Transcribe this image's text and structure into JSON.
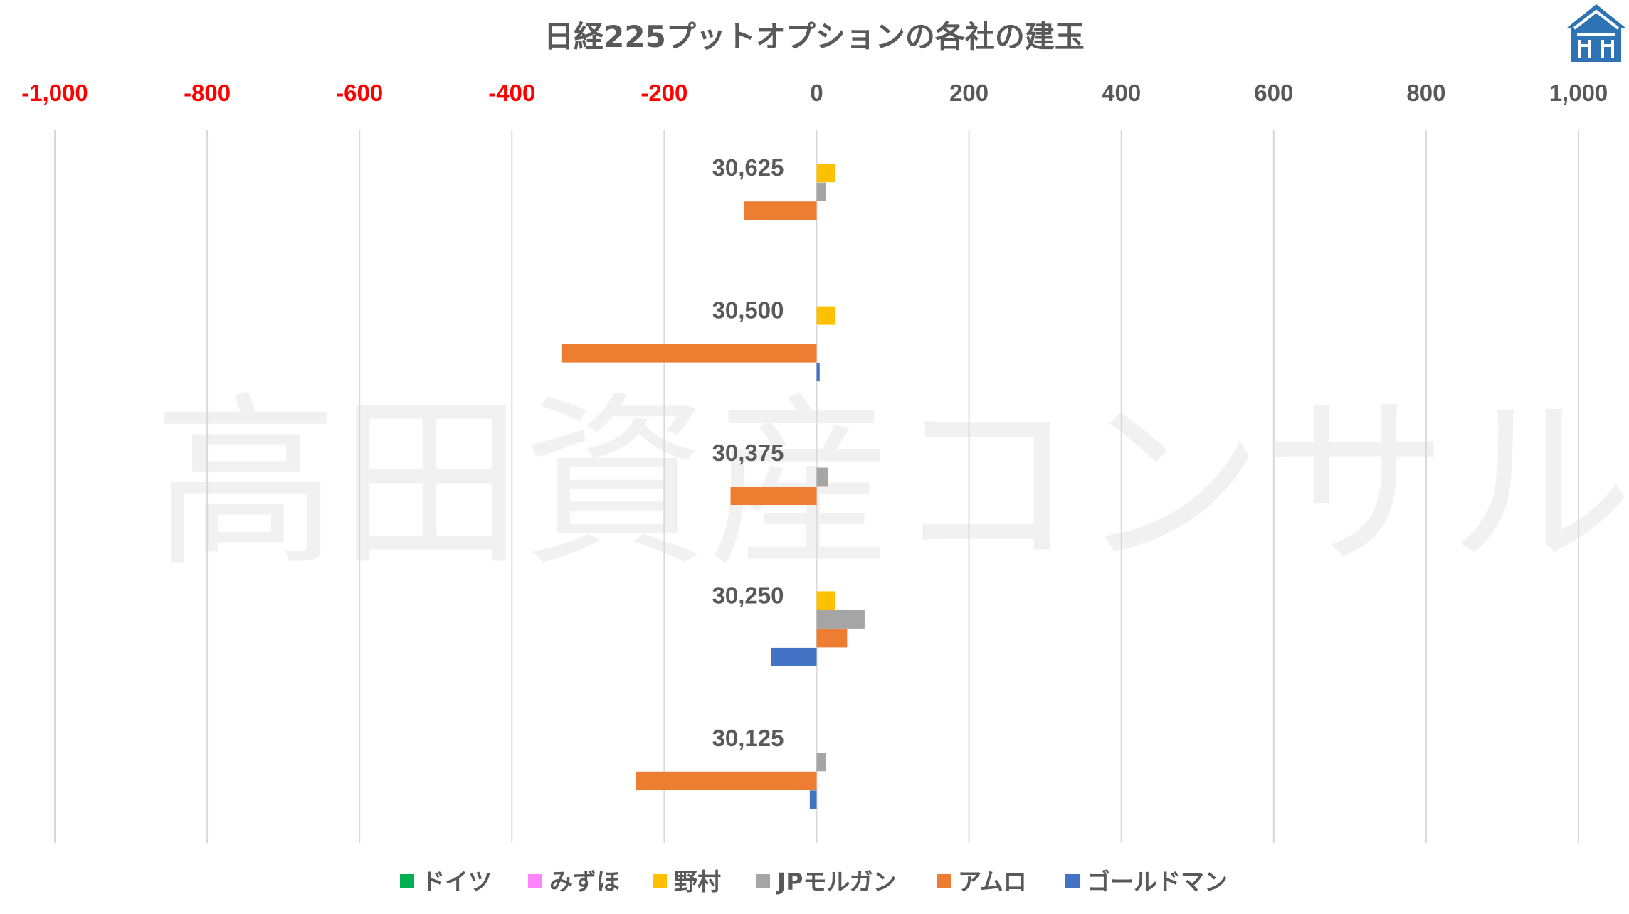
{
  "watermark": "高田資産コンサル",
  "logo": "house-logo-icon",
  "chart_data": {
    "type": "bar",
    "orientation": "horizontal",
    "title": "日経225プットオプションの各社の建玉",
    "xlim": [
      -1000,
      1000
    ],
    "x_ticks": [
      -1000,
      -800,
      -600,
      -400,
      -200,
      0,
      200,
      400,
      600,
      800,
      1000
    ],
    "x_tick_labels": [
      "-1,000",
      "-800",
      "-600",
      "-400",
      "-200",
      "0",
      "200",
      "400",
      "600",
      "800",
      "1,000"
    ],
    "negative_tick_color": "#ff0000",
    "positive_tick_color": "#595959",
    "grid": true,
    "legend_position": "bottom",
    "categories": [
      "30,625",
      "30,500",
      "30,375",
      "30,250",
      "30,125"
    ],
    "series": [
      {
        "name": "ドイツ",
        "color": "#00b050",
        "values": [
          0,
          0,
          0,
          0,
          0
        ]
      },
      {
        "name": "みずほ",
        "color": "#ff85ff",
        "values": [
          0,
          0,
          0,
          0,
          0
        ]
      },
      {
        "name": "野村",
        "color": "#ffc000",
        "values": [
          24,
          24,
          0,
          24,
          0
        ]
      },
      {
        "name": "JPモルガン",
        "color": "#a5a5a5",
        "values": [
          12,
          0,
          15,
          63,
          12
        ]
      },
      {
        "name": "アムロ",
        "color": "#ed7d31",
        "values": [
          -95,
          -335,
          -113,
          40,
          -237
        ]
      },
      {
        "name": "ゴールドマン",
        "color": "#4472c4",
        "values": [
          0,
          4,
          0,
          -60,
          -9
        ]
      }
    ]
  }
}
